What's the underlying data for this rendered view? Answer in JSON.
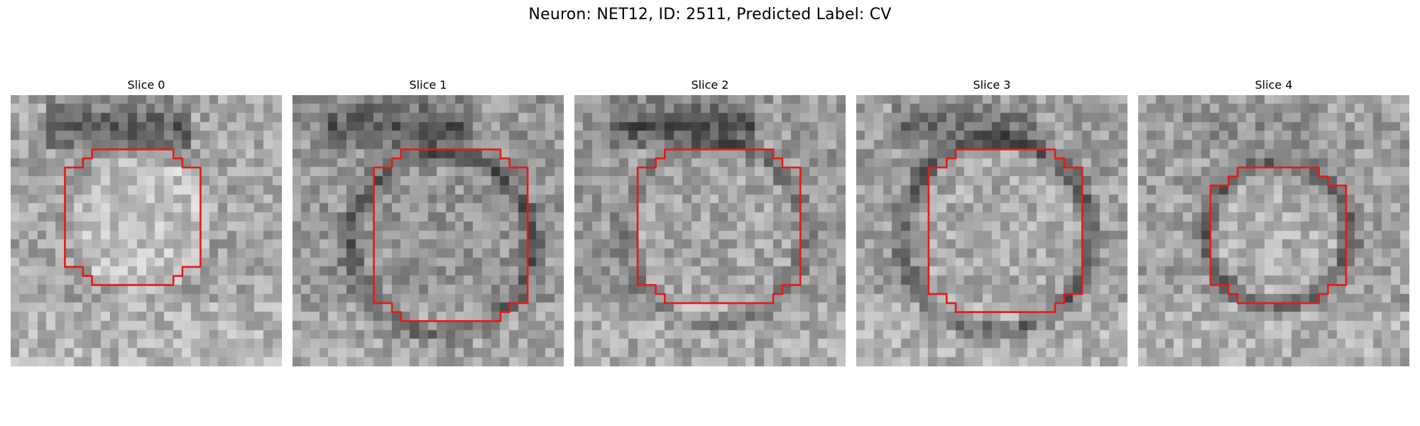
{
  "figure": {
    "title": "Neuron: NET12, ID: 2511, Predicted Label: CV"
  },
  "panels": [
    {
      "title": "Slice 0"
    },
    {
      "title": "Slice 1"
    },
    {
      "title": "Slice 2"
    },
    {
      "title": "Slice 3"
    },
    {
      "title": "Slice 4"
    }
  ],
  "colors": {
    "contour": "#e31a1c",
    "background": "#ffffff"
  }
}
